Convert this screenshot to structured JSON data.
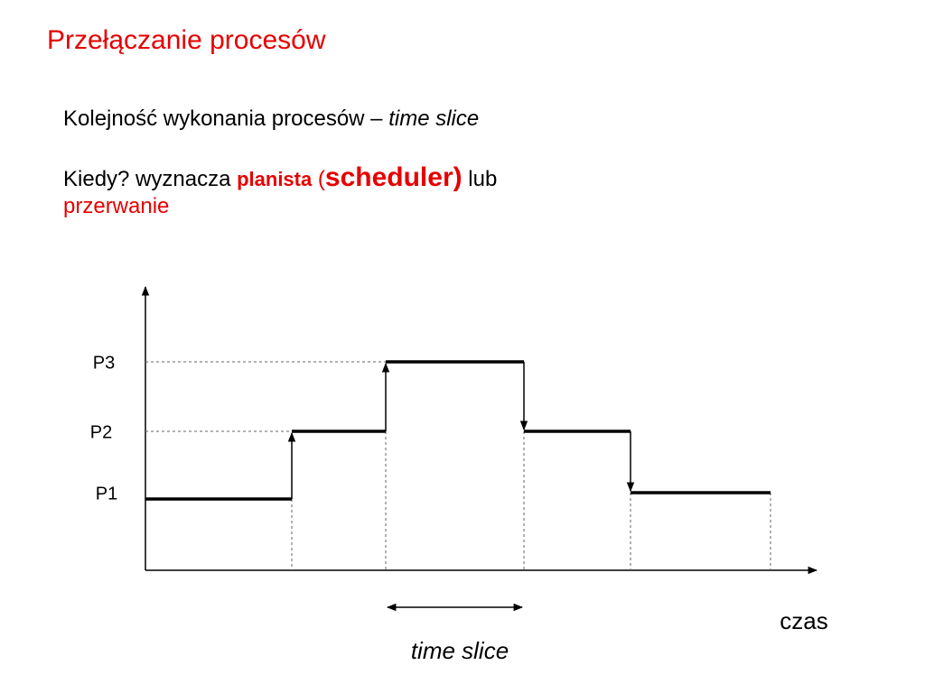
{
  "title": "Przełączanie procesów",
  "bullets": [
    {
      "text": "Kolejność wykonania procesów – ",
      "emphasis": "time slice"
    },
    {
      "parts": [
        "Kiedy? wyznacza ",
        "planista",
        " (",
        "scheduler)",
        " lub",
        "przerwanie"
      ]
    }
  ],
  "diagram": {
    "levels": [
      "P3",
      "P2",
      "P1"
    ],
    "x_label": "czas",
    "interval_label": "time slice"
  }
}
